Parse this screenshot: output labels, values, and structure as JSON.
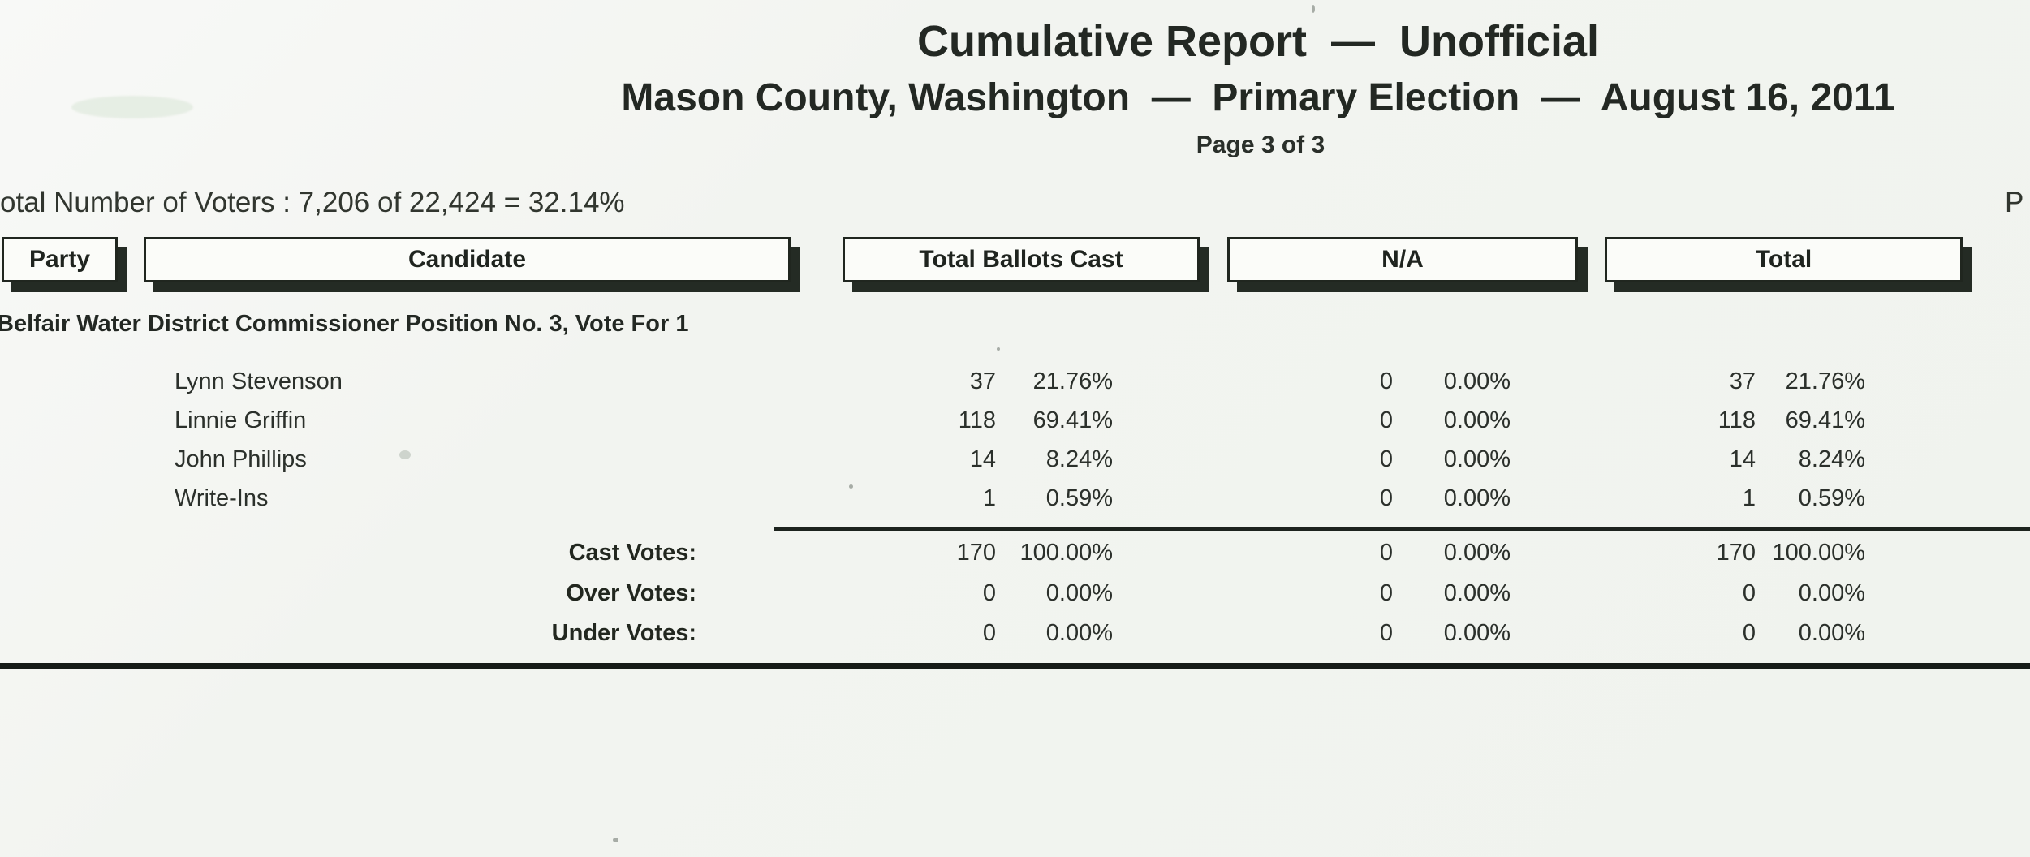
{
  "page": {
    "title": "Cumulative Report  —  Unofficial",
    "subtitle": "Mason County, Washington  —  Primary Election  —  August 16, 2011",
    "page_indicator": "Page 3 of 3",
    "voters_line": "otal Number of Voters : 7,206 of 22,424 = 32.14%",
    "right_edge_fragment": "P"
  },
  "table": {
    "headers": {
      "party": "Party",
      "candidate": "Candidate",
      "total_ballots_cast": "Total Ballots Cast",
      "na": "N/A",
      "total": "Total"
    }
  },
  "contest": {
    "title": "Belfair Water District Commissioner Position No. 3, Vote For 1",
    "rows": [
      {
        "name": "Lynn Stevenson",
        "tbc_count": "37",
        "tbc_pct": "21.76%",
        "na_count": "0",
        "na_pct": "0.00%",
        "total_count": "37",
        "total_pct": "21.76%"
      },
      {
        "name": "Linnie Griffin",
        "tbc_count": "118",
        "tbc_pct": "69.41%",
        "na_count": "0",
        "na_pct": "0.00%",
        "total_count": "118",
        "total_pct": "69.41%"
      },
      {
        "name": "John Phillips",
        "tbc_count": "14",
        "tbc_pct": "8.24%",
        "na_count": "0",
        "na_pct": "0.00%",
        "total_count": "14",
        "total_pct": "8.24%"
      },
      {
        "name": "Write-Ins",
        "tbc_count": "1",
        "tbc_pct": "0.59%",
        "na_count": "0",
        "na_pct": "0.00%",
        "total_count": "1",
        "total_pct": "0.59%"
      }
    ],
    "summary": [
      {
        "label": "Cast Votes:",
        "tbc_count": "170",
        "tbc_pct": "100.00%",
        "na_count": "0",
        "na_pct": "0.00%",
        "total_count": "170",
        "total_pct": "100.00%"
      },
      {
        "label": "Over Votes:",
        "tbc_count": "0",
        "tbc_pct": "0.00%",
        "na_count": "0",
        "na_pct": "0.00%",
        "total_count": "0",
        "total_pct": "0.00%"
      },
      {
        "label": "Under Votes:",
        "tbc_count": "0",
        "tbc_pct": "0.00%",
        "na_count": "0",
        "na_pct": "0.00%",
        "total_count": "0",
        "total_pct": "0.00%"
      }
    ]
  },
  "colors": {
    "paper": "#f2f4f0",
    "ink": "#2b302b",
    "rule": "#1d231e",
    "box_shadow": "#242b24"
  }
}
